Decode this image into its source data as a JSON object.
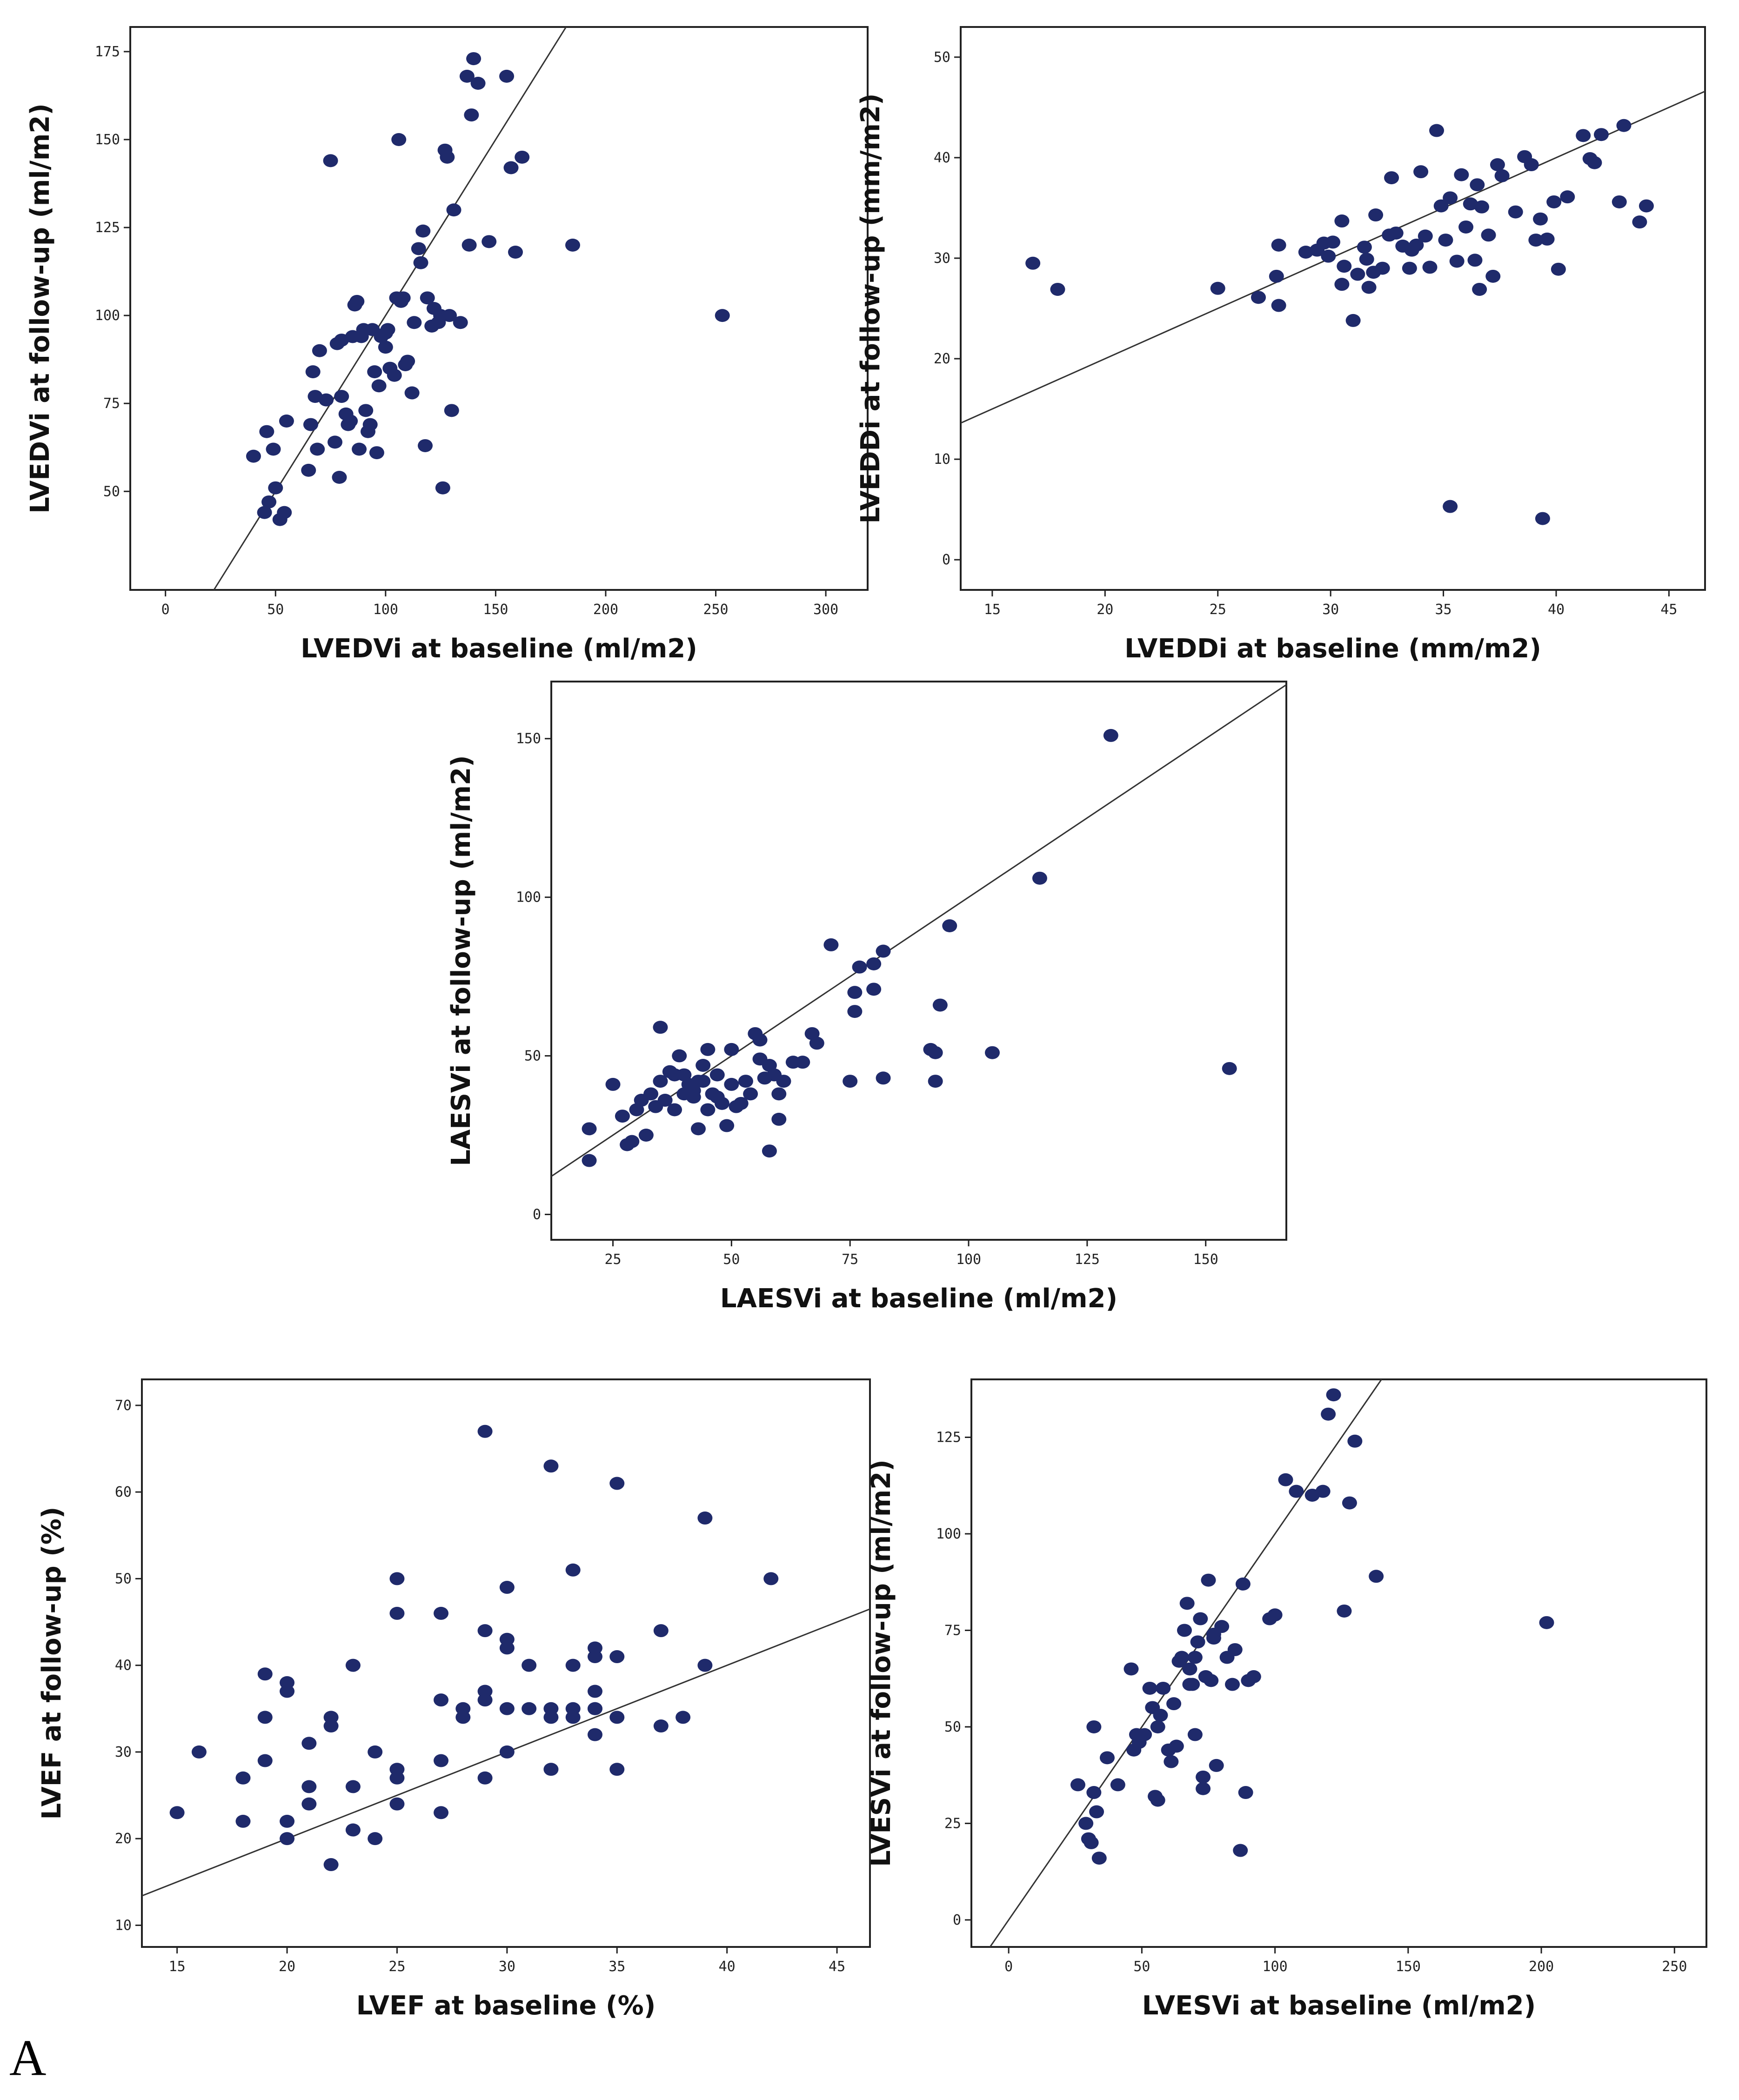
{
  "panel_letter": "A",
  "chart_data": [
    {
      "type": "scatter",
      "xlabel": "LVEDVi at baseline (ml/m2)",
      "ylabel": "LVEDVi at follow-up (ml/m2)",
      "xlim": [
        -16,
        319
      ],
      "ylim": [
        22,
        182
      ],
      "xticks": [
        0,
        50,
        100,
        150,
        200,
        250,
        300
      ],
      "yticks": [
        50,
        75,
        100,
        125,
        150,
        175
      ],
      "identity_line": true,
      "x": [
        40,
        45,
        46,
        47,
        49,
        50,
        52,
        54,
        55,
        65,
        66,
        67,
        68,
        69,
        70,
        73,
        75,
        77,
        78,
        79,
        80,
        80,
        82,
        83,
        84,
        85,
        86,
        87,
        88,
        89,
        90,
        91,
        92,
        93,
        94,
        95,
        96,
        97,
        98,
        100,
        100,
        101,
        102,
        104,
        105,
        106,
        107,
        108,
        109,
        110,
        112,
        113,
        115,
        116,
        117,
        118,
        119,
        121,
        122,
        124,
        125,
        126,
        127,
        128,
        129,
        130,
        131,
        134,
        137,
        138,
        139,
        140,
        142,
        147,
        155,
        157,
        159,
        162,
        185,
        253
      ],
      "y": [
        60,
        44,
        67,
        47,
        62,
        51,
        42,
        44,
        70,
        56,
        69,
        84,
        77,
        62,
        90,
        76,
        144,
        64,
        92,
        54,
        77,
        93,
        72,
        69,
        70,
        94,
        103,
        104,
        62,
        94,
        96,
        73,
        67,
        69,
        96,
        84,
        61,
        80,
        94,
        95,
        91,
        96,
        85,
        83,
        105,
        150,
        104,
        105,
        86,
        87,
        78,
        98,
        119,
        115,
        124,
        63,
        105,
        97,
        102,
        98,
        100,
        51,
        147,
        145,
        100,
        73,
        130,
        98,
        168,
        120,
        157,
        173,
        166,
        121,
        168,
        142,
        118,
        145,
        120,
        100
      ],
      "note": "identity line y=x"
    },
    {
      "type": "scatter",
      "xlabel": "LVEDDi at baseline (mm/m2)",
      "ylabel": "LVEDDi at follow-up (mm/m2)",
      "xlim": [
        13.6,
        46.6
      ],
      "ylim": [
        -3,
        53
      ],
      "xticks": [
        15,
        20,
        25,
        30,
        35,
        40,
        45
      ],
      "yticks": [
        0,
        10,
        20,
        30,
        40,
        50
      ],
      "identity_line": true,
      "x": [
        16.8,
        17.9,
        25,
        26.8,
        27.6,
        27.7,
        27.7,
        28.9,
        29.4,
        29.7,
        29.9,
        30.1,
        30.5,
        30.5,
        30.6,
        31,
        31.2,
        31.5,
        31.6,
        31.7,
        31.9,
        32,
        32.3,
        32.6,
        32.7,
        32.9,
        33.2,
        33.5,
        33.6,
        33.8,
        34,
        34.2,
        34.4,
        34.7,
        34.9,
        35.1,
        35.3,
        35.6,
        35.8,
        36,
        36.2,
        36.4,
        36.5,
        36.6,
        36.7,
        37,
        37.2,
        37.4,
        37.6,
        38.2,
        38.6,
        38.9,
        39.1,
        39.3,
        39.6,
        39.9,
        40.1,
        40.5,
        41.2,
        41.5,
        41.7,
        42,
        42.8,
        43,
        43.7,
        44,
        35.3,
        39.4
      ],
      "y": [
        29.5,
        26.9,
        27,
        26.1,
        28.2,
        25.3,
        31.3,
        30.6,
        30.8,
        31.5,
        30.2,
        31.6,
        33.7,
        27.4,
        29.2,
        23.8,
        28.4,
        31.1,
        29.9,
        27.1,
        28.6,
        34.3,
        29,
        32.3,
        38,
        32.5,
        31.2,
        29,
        30.8,
        31.3,
        38.6,
        32.2,
        29.1,
        42.7,
        35.2,
        31.8,
        36,
        29.7,
        38.3,
        33.1,
        35.4,
        29.8,
        37.3,
        26.9,
        35.1,
        32.3,
        28.2,
        39.3,
        38.2,
        34.6,
        40.1,
        39.3,
        31.8,
        33.9,
        31.9,
        35.6,
        28.9,
        36.1,
        42.2,
        39.9,
        39.5,
        42.3,
        35.6,
        43.2,
        33.6,
        35.2,
        5.3,
        4.1
      ]
    },
    {
      "type": "scatter",
      "xlabel": "LAESVi at baseline (ml/m2)",
      "ylabel": "LAESVi at follow-up (ml/m2)",
      "xlim": [
        12,
        167
      ],
      "ylim": [
        -8,
        168
      ],
      "xticks": [
        25,
        50,
        75,
        100,
        125,
        150
      ],
      "yticks": [
        0,
        50,
        100,
        150
      ],
      "identity_line": true,
      "x": [
        20,
        20,
        25,
        27,
        28,
        29,
        30,
        31,
        32,
        33,
        34,
        35,
        35,
        36,
        37,
        38,
        38,
        39,
        40,
        40,
        41,
        42,
        42,
        43,
        43,
        44,
        44,
        45,
        45,
        46,
        47,
        47,
        48,
        49,
        50,
        50,
        51,
        52,
        53,
        54,
        55,
        56,
        56,
        57,
        58,
        58,
        59,
        60,
        60,
        61,
        63,
        65,
        67,
        68,
        71,
        75,
        76,
        76,
        77,
        80,
        80,
        82,
        82,
        92,
        93,
        93,
        94,
        96,
        105,
        115,
        130,
        155
      ],
      "y": [
        27,
        17,
        41,
        31,
        22,
        23,
        33,
        36,
        25,
        38,
        34,
        59,
        42,
        36,
        45,
        44,
        33,
        50,
        38,
        44,
        41,
        37,
        39,
        27,
        42,
        42,
        47,
        52,
        33,
        38,
        44,
        37,
        35,
        28,
        41,
        52,
        34,
        35,
        42,
        38,
        57,
        49,
        55,
        43,
        47,
        20,
        44,
        38,
        30,
        42,
        48,
        48,
        57,
        54,
        85,
        42,
        70,
        64,
        78,
        71,
        79,
        43,
        83,
        52,
        51,
        42,
        66,
        91,
        51,
        106,
        151,
        46
      ],
      "note": "last point pair approx; identity line y=x"
    },
    {
      "type": "scatter",
      "xlabel": "LVEF at baseline (%)",
      "ylabel": "LVEF at follow-up (%)",
      "xlim": [
        13.4,
        46.5
      ],
      "ylim": [
        7.5,
        73
      ],
      "xticks": [
        15,
        20,
        25,
        30,
        35,
        40,
        45
      ],
      "yticks": [
        10,
        20,
        30,
        40,
        50,
        60,
        70
      ],
      "identity_line": true,
      "x": [
        15,
        16,
        18,
        18,
        19,
        19,
        19,
        20,
        20,
        20,
        20,
        21,
        21,
        21,
        22,
        22,
        22,
        23,
        23,
        23,
        24,
        24,
        25,
        25,
        25,
        25,
        25,
        27,
        27,
        27,
        27,
        28,
        28,
        29,
        29,
        29,
        29,
        29,
        30,
        30,
        30,
        30,
        30,
        31,
        31,
        32,
        32,
        32,
        32,
        33,
        33,
        33,
        33,
        34,
        34,
        34,
        34,
        34,
        34,
        35,
        35,
        35,
        35,
        37,
        37,
        38,
        39,
        39,
        42
      ],
      "y": [
        23,
        30,
        22,
        27,
        39,
        34,
        29,
        38,
        37,
        22,
        20,
        31,
        26,
        24,
        34,
        33,
        17,
        26,
        21,
        40,
        30,
        20,
        50,
        46,
        28,
        27,
        24,
        46,
        36,
        29,
        23,
        35,
        34,
        67,
        44,
        37,
        36,
        27,
        49,
        43,
        42,
        35,
        30,
        40,
        35,
        63,
        35,
        34,
        28,
        51,
        40,
        35,
        34,
        42,
        41,
        37,
        35,
        32,
        35,
        61,
        41,
        34,
        28,
        44,
        33,
        34,
        57,
        40,
        50
      ]
    },
    {
      "type": "scatter",
      "xlabel": "LVESVi at baseline (ml/m2)",
      "ylabel": "LVESVi at follow-up (ml/m2)",
      "xlim": [
        -14,
        262
      ],
      "ylim": [
        -7,
        140
      ],
      "xticks": [
        0,
        50,
        100,
        150,
        200,
        250
      ],
      "yticks": [
        0,
        25,
        50,
        75,
        100,
        125
      ],
      "identity_line": true,
      "x": [
        26,
        29,
        30,
        31,
        32,
        32,
        33,
        34,
        37,
        41,
        46,
        47,
        48,
        49,
        51,
        53,
        54,
        55,
        56,
        56,
        57,
        58,
        60,
        61,
        62,
        63,
        64,
        65,
        66,
        67,
        68,
        68,
        69,
        70,
        70,
        71,
        72,
        73,
        73,
        74,
        75,
        76,
        77,
        77,
        78,
        80,
        82,
        84,
        85,
        87,
        88,
        89,
        90,
        92,
        98,
        100,
        104,
        108,
        114,
        118,
        120,
        122,
        126,
        128,
        130,
        138,
        202
      ],
      "y": [
        35,
        25,
        21,
        20,
        33,
        50,
        28,
        16,
        42,
        35,
        65,
        44,
        48,
        46,
        48,
        60,
        55,
        32,
        31,
        50,
        53,
        60,
        44,
        41,
        56,
        45,
        67,
        68,
        75,
        82,
        65,
        61,
        61,
        68,
        48,
        72,
        78,
        37,
        34,
        63,
        88,
        62,
        73,
        74,
        40,
        76,
        68,
        61,
        70,
        18,
        87,
        33,
        62,
        63,
        78,
        79,
        114,
        111,
        110,
        111,
        131,
        136,
        80,
        108,
        124,
        89,
        77
      ]
    }
  ]
}
